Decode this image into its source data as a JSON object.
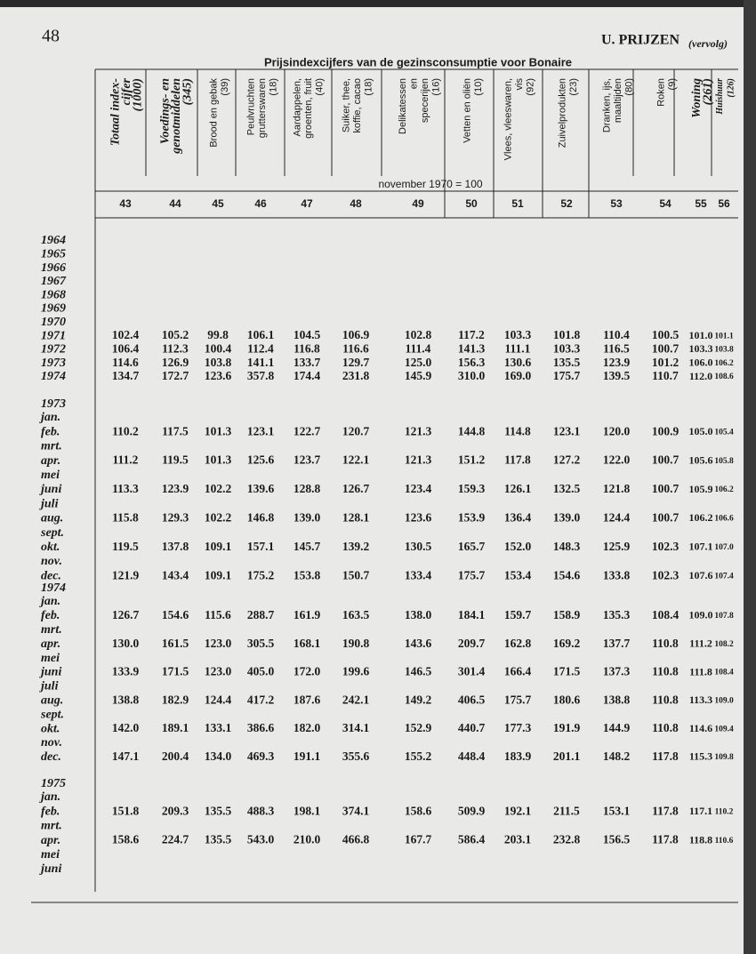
{
  "header": {
    "page_number": "48",
    "title": "U. PRIJZEN",
    "continued": "(vervolg)"
  },
  "table": {
    "title": "Prijsindexcijfers van de gezinsconsumptie voor Bonaire",
    "base": "november 1970 = 100",
    "columns": [
      {
        "lines": [
          "Totaal index-",
          "cijfer",
          "(1000)"
        ],
        "number": "43"
      },
      {
        "lines": [
          "Voedings- en",
          "genotmiddelen",
          "(345)"
        ],
        "number": "44"
      },
      {
        "lines": [
          "Brood en gebak",
          "(39)"
        ],
        "number": "45"
      },
      {
        "lines": [
          "Peulvruchten",
          "grutterswaren",
          "(18)"
        ],
        "number": "46"
      },
      {
        "lines": [
          "Aardappelen,",
          "groenten, fruit",
          "(40)"
        ],
        "number": "47"
      },
      {
        "lines": [
          "Suiker, thee,",
          "koffie, cacao",
          "(18)"
        ],
        "number": "48"
      },
      {
        "lines": [
          "Delikatessen",
          "en",
          "specerijen",
          "(16)"
        ],
        "number": "49"
      },
      {
        "lines": [
          "Vetten en oliën",
          "(10)"
        ],
        "number": "50"
      },
      {
        "lines": [
          "Vlees, vleeswaren,",
          "vis",
          "(92)"
        ],
        "number": "51"
      },
      {
        "lines": [
          "Zuivelprodukten",
          "(23)"
        ],
        "number": "52"
      },
      {
        "lines": [
          "Dranken, ijs,",
          "maaltijden",
          "(80)"
        ],
        "number": "53"
      },
      {
        "lines": [
          "Roken",
          "(9)"
        ],
        "number": "54"
      },
      {
        "lines": [
          "Woning",
          "(261)"
        ],
        "number": "55"
      },
      {
        "lines": [
          "Huishuur",
          "(126)"
        ],
        "number": "56"
      }
    ],
    "rows": [
      {
        "label": "1964"
      },
      {
        "label": "1965"
      },
      {
        "label": "1966"
      },
      {
        "label": "1967"
      },
      {
        "label": "1968"
      },
      {
        "label": "1969"
      },
      {
        "label": "1970"
      },
      {
        "label": "1971",
        "values": [
          "102.4",
          "105.2",
          "99.8",
          "106.1",
          "104.5",
          "106.9",
          "102.8",
          "117.2",
          "103.3",
          "101.8",
          "110.4",
          "100.5",
          "101.0",
          "101.1"
        ]
      },
      {
        "label": "1972",
        "values": [
          "106.4",
          "112.3",
          "100.4",
          "112.4",
          "116.8",
          "116.6",
          "111.4",
          "141.3",
          "111.1",
          "103.3",
          "116.5",
          "100.7",
          "103.3",
          "103.8"
        ]
      },
      {
        "label": "1973",
        "values": [
          "114.6",
          "126.9",
          "103.8",
          "141.1",
          "133.7",
          "129.7",
          "125.0",
          "156.3",
          "130.6",
          "135.5",
          "123.9",
          "101.2",
          "106.0",
          "106.2"
        ]
      },
      {
        "label": "1974",
        "values": [
          "134.7",
          "172.7",
          "123.6",
          "357.8",
          "174.4",
          "231.8",
          "145.9",
          "310.0",
          "169.0",
          "175.7",
          "139.5",
          "110.7",
          "112.0",
          "108.6"
        ]
      },
      {
        "label": "1973"
      },
      {
        "label": "jan."
      },
      {
        "label": "feb.",
        "values": [
          "110.2",
          "117.5",
          "101.3",
          "123.1",
          "122.7",
          "120.7",
          "121.3",
          "144.8",
          "114.8",
          "123.1",
          "120.0",
          "100.9",
          "105.0",
          "105.4"
        ]
      },
      {
        "label": "mrt."
      },
      {
        "label": "apr.",
        "values": [
          "111.2",
          "119.5",
          "101.3",
          "125.6",
          "123.7",
          "122.1",
          "121.3",
          "151.2",
          "117.8",
          "127.2",
          "122.0",
          "100.7",
          "105.6",
          "105.8"
        ]
      },
      {
        "label": "mei"
      },
      {
        "label": "juni",
        "values": [
          "113.3",
          "123.9",
          "102.2",
          "139.6",
          "128.8",
          "126.7",
          "123.4",
          "159.3",
          "126.1",
          "132.5",
          "121.8",
          "100.7",
          "105.9",
          "106.2"
        ]
      },
      {
        "label": "juli"
      },
      {
        "label": "aug.",
        "values": [
          "115.8",
          "129.3",
          "102.2",
          "146.8",
          "139.0",
          "128.1",
          "123.6",
          "153.9",
          "136.4",
          "139.0",
          "124.4",
          "100.7",
          "106.2",
          "106.6"
        ]
      },
      {
        "label": "sept."
      },
      {
        "label": "okt.",
        "values": [
          "119.5",
          "137.8",
          "109.1",
          "157.1",
          "145.7",
          "139.2",
          "130.5",
          "165.7",
          "152.0",
          "148.3",
          "125.9",
          "102.3",
          "107.1",
          "107.0"
        ]
      },
      {
        "label": "nov."
      },
      {
        "label": "dec.",
        "values": [
          "121.9",
          "143.4",
          "109.1",
          "175.2",
          "153.8",
          "150.7",
          "133.4",
          "175.7",
          "153.4",
          "154.6",
          "133.8",
          "102.3",
          "107.6",
          "107.4"
        ]
      },
      {
        "label": "1974"
      },
      {
        "label": "jan."
      },
      {
        "label": "feb.",
        "values": [
          "126.7",
          "154.6",
          "115.6",
          "288.7",
          "161.9",
          "163.5",
          "138.0",
          "184.1",
          "159.7",
          "158.9",
          "135.3",
          "108.4",
          "109.0",
          "107.8"
        ]
      },
      {
        "label": "mrt."
      },
      {
        "label": "apr.",
        "values": [
          "130.0",
          "161.5",
          "123.0",
          "305.5",
          "168.1",
          "190.8",
          "143.6",
          "209.7",
          "162.8",
          "169.2",
          "137.7",
          "110.8",
          "111.2",
          "108.2"
        ]
      },
      {
        "label": "mei"
      },
      {
        "label": "juni",
        "values": [
          "133.9",
          "171.5",
          "123.0",
          "405.0",
          "172.0",
          "199.6",
          "146.5",
          "301.4",
          "166.4",
          "171.5",
          "137.3",
          "110.8",
          "111.8",
          "108.4"
        ]
      },
      {
        "label": "juli"
      },
      {
        "label": "aug.",
        "values": [
          "138.8",
          "182.9",
          "124.4",
          "417.2",
          "187.6",
          "242.1",
          "149.2",
          "406.5",
          "175.7",
          "180.6",
          "138.8",
          "110.8",
          "113.3",
          "109.0"
        ]
      },
      {
        "label": "sept."
      },
      {
        "label": "okt.",
        "values": [
          "142.0",
          "189.1",
          "133.1",
          "386.6",
          "182.0",
          "314.1",
          "152.9",
          "440.7",
          "177.3",
          "191.9",
          "144.9",
          "110.8",
          "114.6",
          "109.4"
        ]
      },
      {
        "label": "nov."
      },
      {
        "label": "dec.",
        "values": [
          "147.1",
          "200.4",
          "134.0",
          "469.3",
          "191.1",
          "355.6",
          "155.2",
          "448.4",
          "183.9",
          "201.1",
          "148.2",
          "117.8",
          "115.3",
          "109.8"
        ]
      },
      {
        "label": "1975"
      },
      {
        "label": "jan."
      },
      {
        "label": "feb.",
        "values": [
          "151.8",
          "209.3",
          "135.5",
          "488.3",
          "198.1",
          "374.1",
          "158.6",
          "509.9",
          "192.1",
          "211.5",
          "153.1",
          "117.8",
          "117.1",
          "110.2"
        ]
      },
      {
        "label": "mrt."
      },
      {
        "label": "apr.",
        "values": [
          "158.6",
          "224.7",
          "135.5",
          "543.0",
          "210.0",
          "466.8",
          "167.7",
          "586.4",
          "203.1",
          "232.8",
          "156.5",
          "117.8",
          "118.8",
          "110.6"
        ]
      },
      {
        "label": "mei"
      },
      {
        "label": "juni"
      }
    ]
  }
}
